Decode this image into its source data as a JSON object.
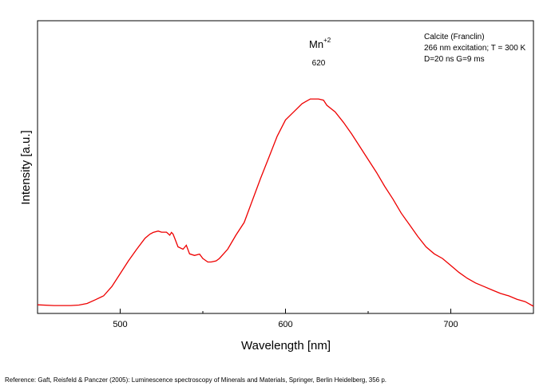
{
  "chart_data": {
    "type": "line",
    "title": "",
    "xlabel": "Wavelength [nm]",
    "ylabel": "Intensity [a.u.]",
    "xlim": [
      450,
      750
    ],
    "ylim": [
      0,
      1.0
    ],
    "x_ticks": [
      500,
      600,
      700
    ],
    "y_ticks": [],
    "grid": false,
    "legend": "none",
    "series": [
      {
        "color": "#ee0000",
        "x": [
          450,
          460,
          470,
          475,
          480,
          485,
          490,
          495,
          500,
          505,
          510,
          515,
          518,
          520,
          523,
          525,
          528,
          530,
          531,
          532,
          533,
          535,
          538,
          540,
          542,
          545,
          548,
          550,
          553,
          555,
          558,
          560,
          565,
          570,
          575,
          580,
          585,
          590,
          595,
          600,
          605,
          610,
          615,
          620,
          623,
          625,
          630,
          635,
          640,
          645,
          650,
          655,
          660,
          665,
          670,
          675,
          680,
          685,
          690,
          695,
          700,
          705,
          710,
          715,
          720,
          725,
          730,
          735,
          740,
          745,
          750
        ],
        "y": [
          0.006,
          0.003,
          0.003,
          0.005,
          0.012,
          0.028,
          0.045,
          0.085,
          0.14,
          0.195,
          0.245,
          0.292,
          0.31,
          0.317,
          0.323,
          0.318,
          0.318,
          0.305,
          0.317,
          0.31,
          0.292,
          0.255,
          0.245,
          0.262,
          0.225,
          0.218,
          0.224,
          0.205,
          0.19,
          0.19,
          0.195,
          0.205,
          0.245,
          0.305,
          0.36,
          0.455,
          0.55,
          0.64,
          0.73,
          0.8,
          0.835,
          0.87,
          0.89,
          0.89,
          0.885,
          0.863,
          0.835,
          0.79,
          0.74,
          0.685,
          0.63,
          0.575,
          0.515,
          0.46,
          0.4,
          0.35,
          0.3,
          0.255,
          0.225,
          0.205,
          0.175,
          0.145,
          0.12,
          0.1,
          0.085,
          0.07,
          0.055,
          0.045,
          0.03,
          0.02,
          0.0
        ]
      }
    ],
    "annotations": {
      "peak_ion": "Mn",
      "peak_ion_charge": "+2",
      "peak_wavelength": "620",
      "info_line1": "Calcite (Franclin)",
      "info_line2": "266 nm excitation; T = 300 K",
      "info_line3": "D=20 ns G=9 ms"
    }
  },
  "reference": "Reference: Gaft, Reisfeld & Panczer (2005): Luminescence spectroscopy of Minerals and Materials, Springer, Berlin Heidelberg, 356 p."
}
